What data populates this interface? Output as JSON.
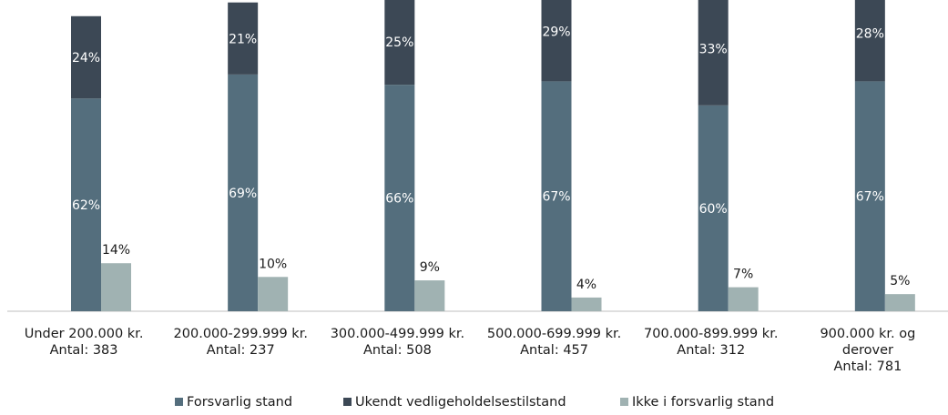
{
  "chart_data": {
    "type": "bar",
    "categories": [
      [
        "Under 200.000 kr.",
        "Antal: 383"
      ],
      [
        "200.000-299.999 kr.",
        "Antal: 237"
      ],
      [
        "300.000-499.999 kr.",
        "Antal: 508"
      ],
      [
        "500.000-699.999 kr.",
        "Antal: 457"
      ],
      [
        "700.000-899.999 kr.",
        "Antal: 312"
      ],
      [
        "900.000 kr. og",
        "derover",
        "Antal: 781"
      ]
    ],
    "series": [
      {
        "name": "Forsvarlig stand",
        "values": [
          62,
          69,
          66,
          67,
          60,
          67
        ],
        "labels": [
          "62%",
          "69%",
          "66%",
          "67%",
          "60%",
          "67%"
        ],
        "color": "#546e7d",
        "stack": "main"
      },
      {
        "name": "Ukendt vedligeholdelsestilstand",
        "values": [
          24,
          21,
          25,
          29,
          33,
          28
        ],
        "labels": [
          "24%",
          "21%",
          "25%",
          "29%",
          "33%",
          "28%"
        ],
        "color": "#3c4855",
        "stack": "main"
      },
      {
        "name": "Ikke i forsvarlig stand",
        "values": [
          14,
          10,
          9,
          4,
          7,
          5
        ],
        "labels": [
          "14%",
          "10%",
          "9%",
          "4%",
          "7%",
          "5%"
        ],
        "color": "#a0b2b2",
        "stack": "side"
      }
    ],
    "ylim": [
      0,
      100
    ],
    "grid": false,
    "legend": "bottom",
    "title": "",
    "xlabel": "",
    "ylabel": ""
  }
}
